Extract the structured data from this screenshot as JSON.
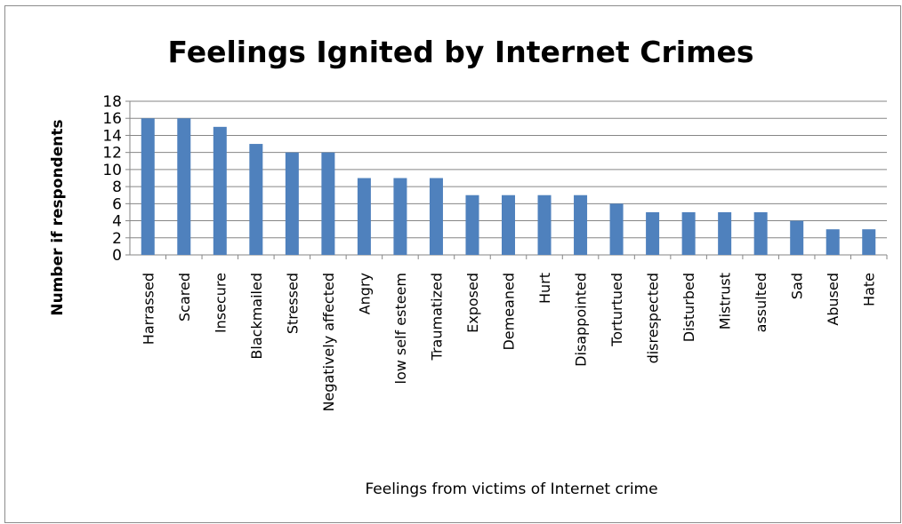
{
  "chart_data": {
    "type": "bar",
    "title": "Feelings Ignited by Internet Crimes",
    "xlabel": "Feelings from victims of Internet crime",
    "ylabel": "Number if respondents",
    "ylim": [
      0,
      18
    ],
    "yticks": [
      0,
      2,
      4,
      6,
      8,
      10,
      12,
      14,
      16,
      18
    ],
    "grid": true,
    "legend": "none",
    "bar_color": "#4f81bd",
    "categories": [
      "Harrassed",
      "Scared",
      "Insecure",
      "Blackmailed",
      "Stressed",
      "Negatively affected",
      "Angry",
      "low self esteem",
      "Traumatized",
      "Exposed",
      "Demeaned",
      "Hurt",
      "Disappointed",
      "Torturtued",
      "disrespected",
      "Disturbed",
      "Mistrust",
      "assulted",
      "Sad",
      "Abused",
      "Hate"
    ],
    "values": [
      16,
      16,
      15,
      13,
      12,
      12,
      9,
      9,
      9,
      7,
      7,
      7,
      7,
      6,
      5,
      5,
      5,
      5,
      4,
      3,
      3
    ]
  }
}
